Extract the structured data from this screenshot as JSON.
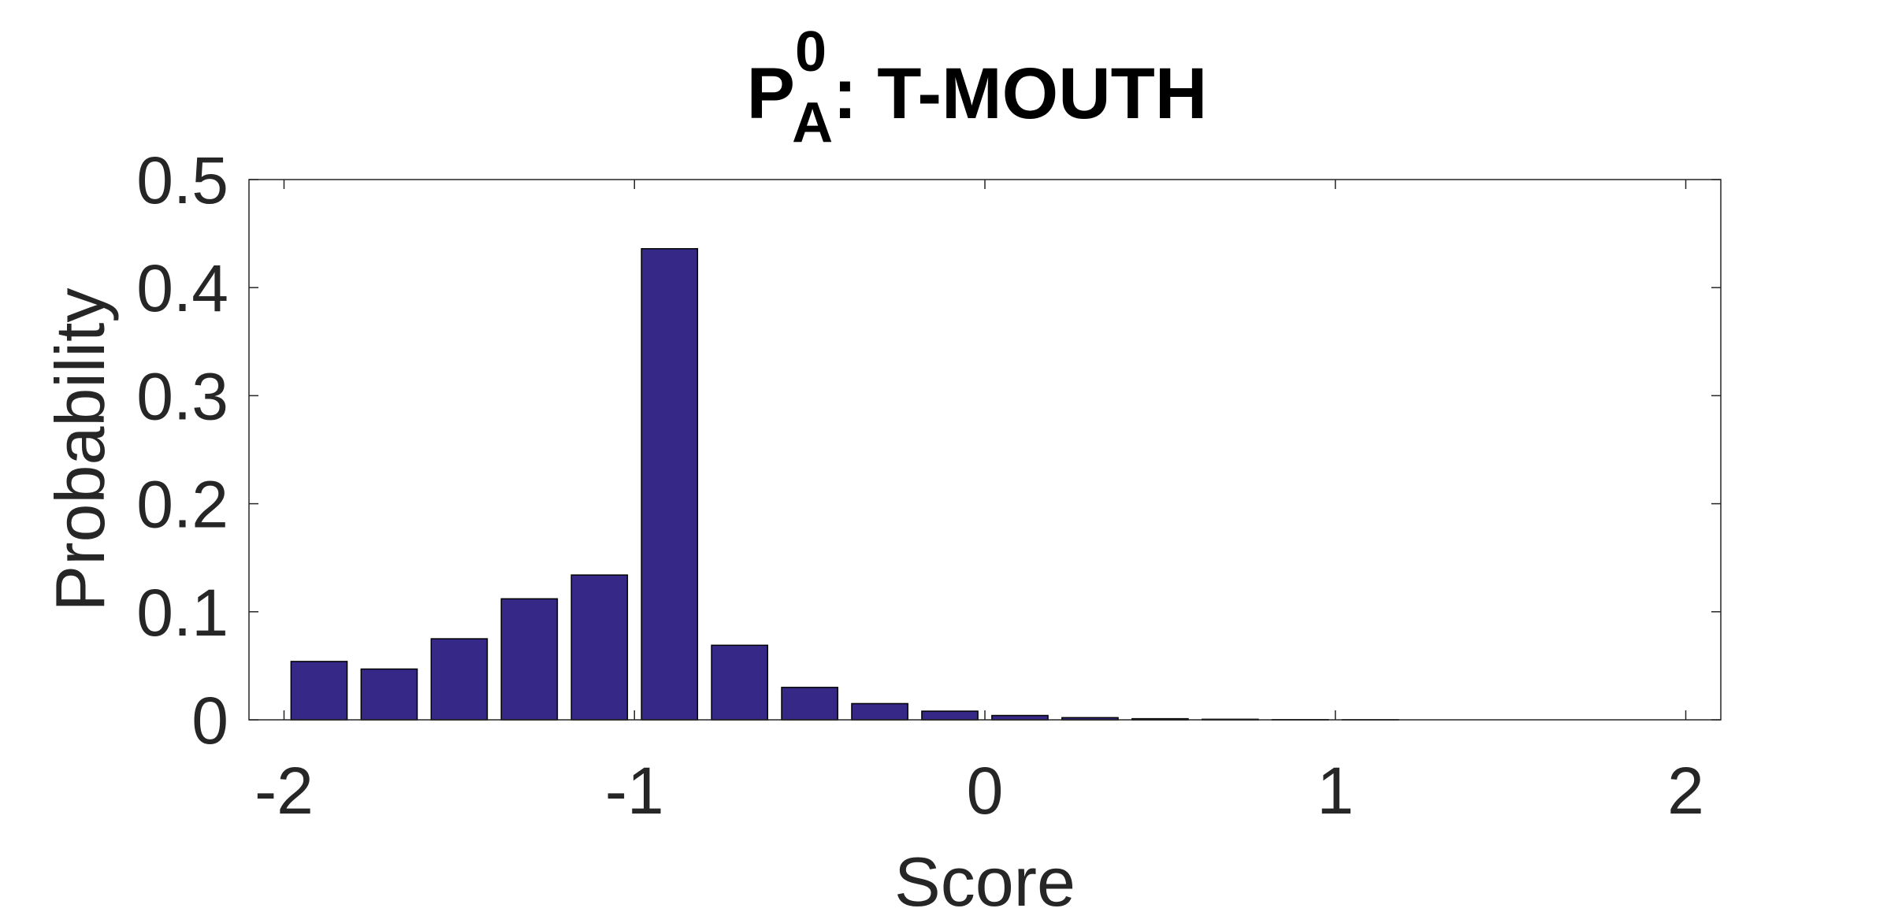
{
  "chart_data": {
    "type": "bar",
    "title": {
      "main": "P",
      "superscript": "0",
      "subscript": "A",
      "suffix": ": T-MOUTH"
    },
    "xlabel": "Score",
    "ylabel": "Probability",
    "xlim": [
      -2.1,
      2.1
    ],
    "ylim": [
      0,
      0.5
    ],
    "xticks": [
      -2,
      -1,
      0,
      1,
      2
    ],
    "xtick_labels": [
      "-2",
      "-1",
      "0",
      "1",
      "2"
    ],
    "yticks": [
      0,
      0.1,
      0.2,
      0.3,
      0.4,
      0.5
    ],
    "ytick_labels": [
      "0",
      "0.1",
      "0.2",
      "0.3",
      "0.4",
      "0.5"
    ],
    "bar_width": 0.16,
    "x": [
      -1.9,
      -1.7,
      -1.5,
      -1.3,
      -1.1,
      -0.9,
      -0.7,
      -0.5,
      -0.3,
      -0.1,
      0.1,
      0.3,
      0.5,
      0.7,
      0.9,
      1.1
    ],
    "values": [
      0.054,
      0.047,
      0.075,
      0.112,
      0.134,
      0.436,
      0.069,
      0.03,
      0.015,
      0.008,
      0.004,
      0.002,
      0.001,
      0.0005,
      0.0002,
      0.0001
    ],
    "grid": false,
    "legend": "none",
    "bar_color": "#352886",
    "bar_edge_color": "#000000"
  }
}
